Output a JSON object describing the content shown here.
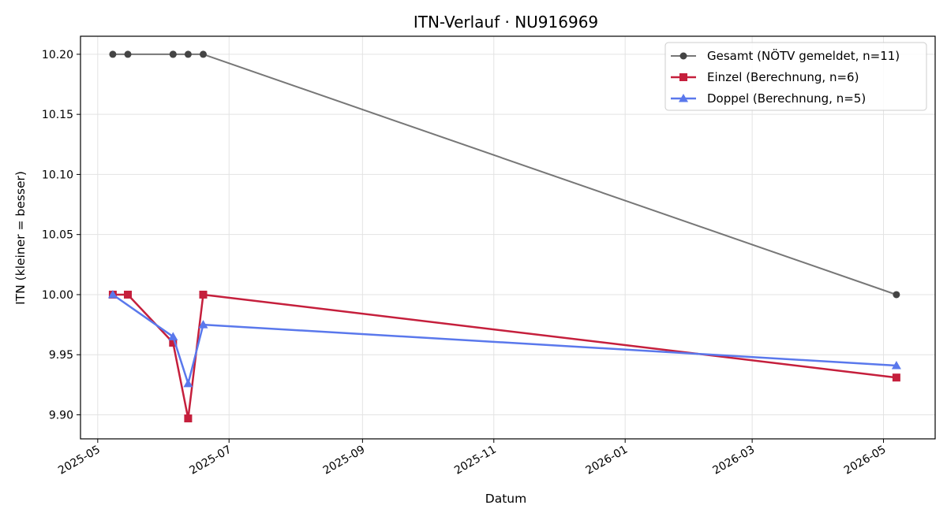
{
  "chart_data": {
    "type": "line",
    "title": "ITN-Verlauf · NU916969",
    "xlabel": "Datum",
    "ylabel": "ITN  (kleiner = besser)",
    "x_ticks": [
      "2025-05",
      "2025-07",
      "2025-09",
      "2025-11",
      "2026-01",
      "2026-03",
      "2026-05"
    ],
    "y_ticks": [
      "9.90",
      "9.95",
      "10.00",
      "10.05",
      "10.10",
      "10.15",
      "10.20"
    ],
    "ylim": [
      9.88,
      10.215
    ],
    "xlim": [
      "2025-04-23",
      "2026-05-25"
    ],
    "grid": true,
    "legend_position": "top-right",
    "series": [
      {
        "name": "Gesamt (NÖTV gemeldet, n=11)",
        "color": "#555555",
        "marker": "circle",
        "points": [
          {
            "x": "2025-05-08",
            "y": 10.2
          },
          {
            "x": "2025-05-15",
            "y": 10.2
          },
          {
            "x": "2025-06-05",
            "y": 10.2
          },
          {
            "x": "2025-06-05",
            "y": 10.2
          },
          {
            "x": "2025-06-12",
            "y": 10.2
          },
          {
            "x": "2025-06-19",
            "y": 10.2
          },
          {
            "x": "2026-05-07",
            "y": 10.0
          }
        ]
      },
      {
        "name": "Einzel (Berechnung, n=6)",
        "color": "#c51f3c",
        "marker": "square",
        "points": [
          {
            "x": "2025-05-08",
            "y": 10.0
          },
          {
            "x": "2025-05-15",
            "y": 10.0
          },
          {
            "x": "2025-06-05",
            "y": 9.96
          },
          {
            "x": "2025-06-12",
            "y": 9.897
          },
          {
            "x": "2025-06-19",
            "y": 10.0
          },
          {
            "x": "2026-05-07",
            "y": 9.931
          }
        ]
      },
      {
        "name": "Doppel (Berechnung, n=5)",
        "color": "#5a78ec",
        "marker": "triangle",
        "points": [
          {
            "x": "2025-05-08",
            "y": 10.0
          },
          {
            "x": "2025-06-05",
            "y": 9.965
          },
          {
            "x": "2025-06-12",
            "y": 9.926
          },
          {
            "x": "2025-06-19",
            "y": 9.975
          },
          {
            "x": "2026-05-07",
            "y": 9.941
          }
        ]
      }
    ]
  }
}
